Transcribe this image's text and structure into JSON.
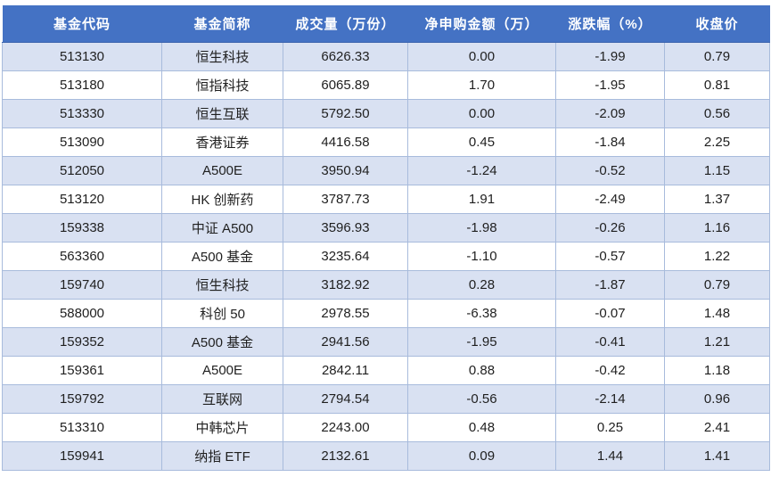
{
  "theme": {
    "page_bg": "#FFFFFF",
    "header_bg": "#4472C4",
    "header_text": "#FFFFFF",
    "band_row_bg": "#D9E1F2",
    "white_row_bg": "#FFFFFF",
    "border": "#A8BBDC",
    "body_text": "#1F1F1F"
  },
  "table": {
    "columns": [
      {
        "key": "fund-code",
        "label": "基金代码"
      },
      {
        "key": "fund-name",
        "label": "基金简称"
      },
      {
        "key": "volume",
        "label": "成交量（万份）"
      },
      {
        "key": "net-subscription",
        "label": "净申购金额（万）"
      },
      {
        "key": "change-pct",
        "label": "涨跌幅（%）"
      },
      {
        "key": "close-price",
        "label": "收盘价"
      }
    ],
    "rows": [
      [
        "513130",
        "恒生科技",
        "6626.33",
        "0.00",
        "-1.99",
        "0.79"
      ],
      [
        "513180",
        "恒指科技",
        "6065.89",
        "1.70",
        "-1.95",
        "0.81"
      ],
      [
        "513330",
        "恒生互联",
        "5792.50",
        "0.00",
        "-2.09",
        "0.56"
      ],
      [
        "513090",
        "香港证券",
        "4416.58",
        "0.45",
        "-1.84",
        "2.25"
      ],
      [
        "512050",
        "A500E",
        "3950.94",
        "-1.24",
        "-0.52",
        "1.15"
      ],
      [
        "513120",
        "HK 创新药",
        "3787.73",
        "1.91",
        "-2.49",
        "1.37"
      ],
      [
        "159338",
        "中证 A500",
        "3596.93",
        "-1.98",
        "-0.26",
        "1.16"
      ],
      [
        "563360",
        "A500 基金",
        "3235.64",
        "-1.10",
        "-0.57",
        "1.22"
      ],
      [
        "159740",
        "恒生科技",
        "3182.92",
        "0.28",
        "-1.87",
        "0.79"
      ],
      [
        "588000",
        "科创 50",
        "2978.55",
        "-6.38",
        "-0.07",
        "1.48"
      ],
      [
        "159352",
        "A500 基金",
        "2941.56",
        "-1.95",
        "-0.41",
        "1.21"
      ],
      [
        "159361",
        "A500E",
        "2842.11",
        "0.88",
        "-0.42",
        "1.18"
      ],
      [
        "159792",
        "互联网",
        "2794.54",
        "-0.56",
        "-2.14",
        "0.96"
      ],
      [
        "513310",
        "中韩芯片",
        "2243.00",
        "0.48",
        "0.25",
        "2.41"
      ],
      [
        "159941",
        "纳指 ETF",
        "2132.61",
        "0.09",
        "1.44",
        "1.41"
      ]
    ]
  }
}
